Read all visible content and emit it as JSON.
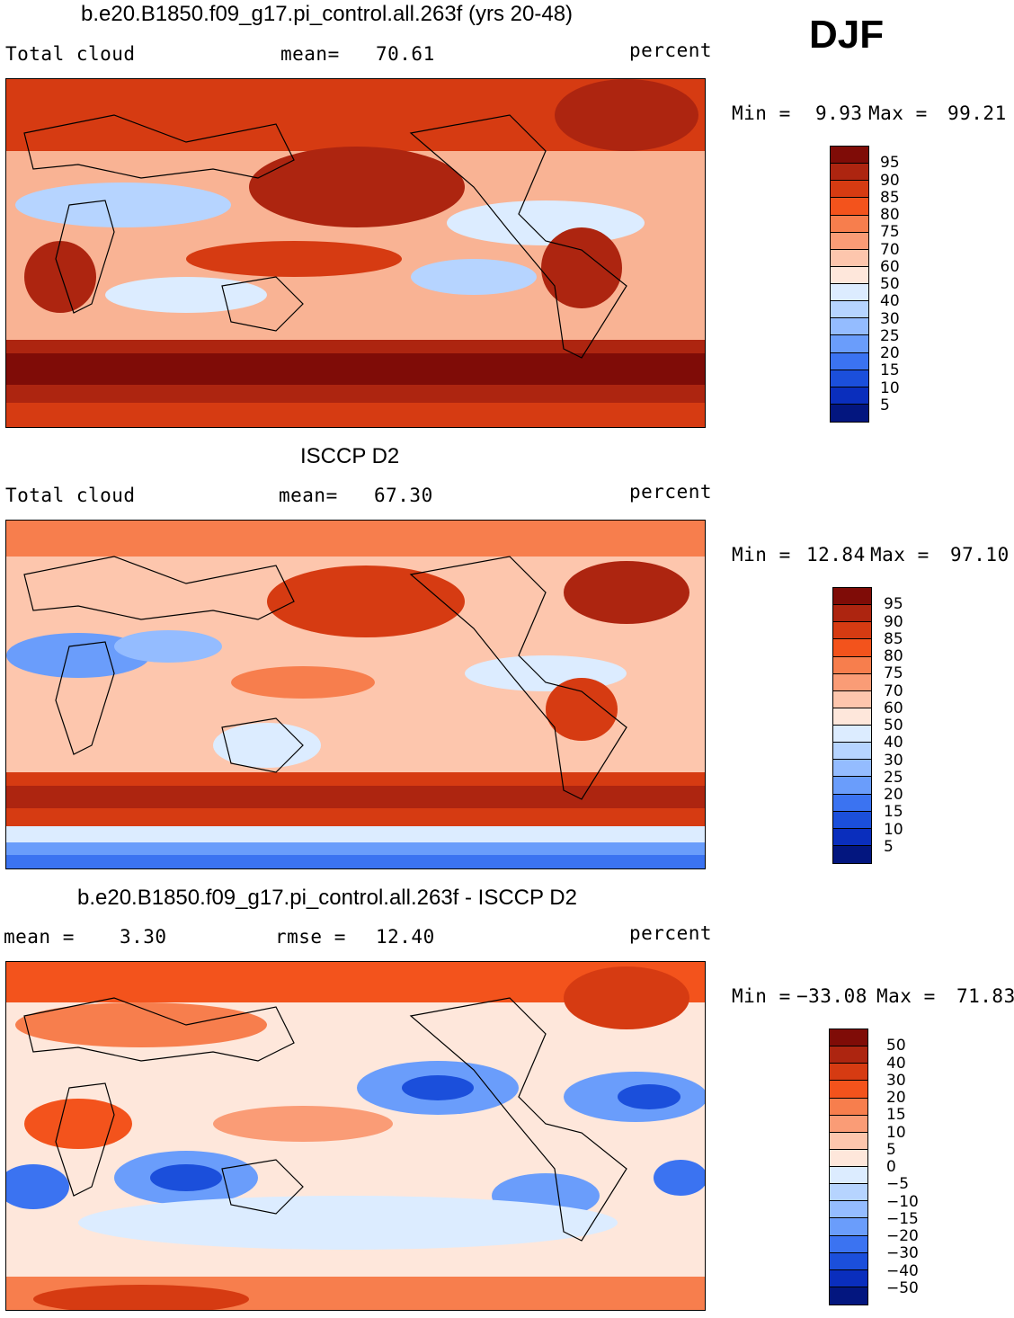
{
  "season": "DJF",
  "panels": [
    {
      "title": "b.e20.B1850.f09_g17.pi_control.all.263f (yrs 20-48)",
      "left_label": "Total cloud",
      "stat1_label": "mean=",
      "stat1_value": "70.61",
      "stat2_label": "",
      "stat2_value": "",
      "units": "percent",
      "min_label": "Min =",
      "min_value": "9.93",
      "max_label": "Max =",
      "max_value": "99.21",
      "colorbar_levels": [
        "95",
        "90",
        "85",
        "80",
        "75",
        "70",
        "60",
        "50",
        "40",
        "30",
        "25",
        "20",
        "15",
        "10",
        "5"
      ],
      "colorbar_colors": [
        "#7f0c07",
        "#ad2510",
        "#d63b12",
        "#f3531c",
        "#f77e4d",
        "#fa9c76",
        "#fdc6ad",
        "#fee7db",
        "#dcecff",
        "#b6d4ff",
        "#94bcff",
        "#6a9dfb",
        "#3b73f1",
        "#1b4fdb",
        "#0a2ebd",
        "#03167f"
      ]
    },
    {
      "title": "ISCCP D2",
      "left_label": "Total cloud",
      "stat1_label": "mean=",
      "stat1_value": "67.30",
      "stat2_label": "",
      "stat2_value": "",
      "units": "percent",
      "min_label": "Min =",
      "min_value": "12.84",
      "max_label": "Max =",
      "max_value": "97.10",
      "colorbar_levels": [
        "95",
        "90",
        "85",
        "80",
        "75",
        "70",
        "60",
        "50",
        "40",
        "30",
        "25",
        "20",
        "15",
        "10",
        "5"
      ],
      "colorbar_colors": [
        "#7f0c07",
        "#ad2510",
        "#d63b12",
        "#f3531c",
        "#f77e4d",
        "#fa9c76",
        "#fdc6ad",
        "#fee7db",
        "#dcecff",
        "#b6d4ff",
        "#94bcff",
        "#6a9dfb",
        "#3b73f1",
        "#1b4fdb",
        "#0a2ebd",
        "#03167f"
      ]
    },
    {
      "title": "b.e20.B1850.f09_g17.pi_control.all.263f - ISCCP D2",
      "left_label": "",
      "stat1_label": "mean =",
      "stat1_value": "3.30",
      "stat2_label": "rmse =",
      "stat2_value": "12.40",
      "units": "percent",
      "min_label": "Min =",
      "min_value": "−33.08",
      "max_label": "Max =",
      "max_value": "71.83",
      "colorbar_levels": [
        "50",
        "40",
        "30",
        "20",
        "15",
        "10",
        "5",
        "0",
        "−5",
        "−10",
        "−15",
        "−20",
        "−30",
        "−40",
        "−50"
      ],
      "colorbar_colors": [
        "#7f0c07",
        "#ad2510",
        "#d63b12",
        "#f3531c",
        "#f77e4d",
        "#fa9c76",
        "#fdc6ad",
        "#fee7db",
        "#dcecff",
        "#b6d4ff",
        "#94bcff",
        "#6a9dfb",
        "#3b73f1",
        "#1b4fdb",
        "#0a2ebd",
        "#03167f"
      ]
    }
  ],
  "map_colors": {
    "background_panel1": "#f6b39a",
    "background_panel2": "#f9c8b0",
    "background_panel3": "#fde0d3",
    "coastline": "#000000"
  }
}
